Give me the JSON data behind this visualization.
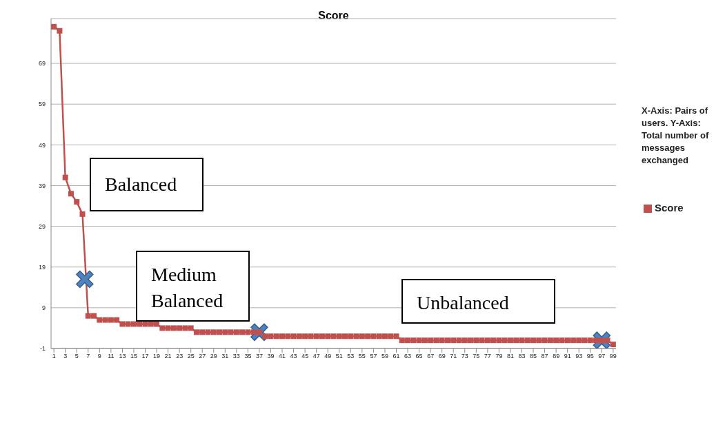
{
  "chart_data": {
    "type": "line",
    "title": "Score",
    "annotations": [
      "Balanced",
      "Medium\nBalanced",
      "Unbalanced",
      "X-Axis: Pairs of users. Y-Axis: Total number of messages exchanged"
    ],
    "series": [
      {
        "name": "Score",
        "color": "#c0504d",
        "marker": "square",
        "x": [
          1,
          2,
          3,
          4,
          5,
          6,
          7,
          8,
          9,
          10,
          11,
          12,
          13,
          14,
          15,
          16,
          17,
          18,
          19,
          20,
          21,
          22,
          23,
          24,
          25,
          26,
          27,
          28,
          29,
          30,
          31,
          32,
          33,
          34,
          35,
          36,
          37,
          38,
          39,
          40,
          41,
          42,
          43,
          44,
          45,
          46,
          47,
          48,
          49,
          50,
          51,
          52,
          53,
          54,
          55,
          56,
          57,
          58,
          59,
          60,
          61,
          62,
          63,
          64,
          65,
          66,
          67,
          68,
          69,
          70,
          71,
          72,
          73,
          74,
          75,
          76,
          77,
          78,
          79,
          80,
          81,
          82,
          83,
          84,
          85,
          86,
          87,
          88,
          89,
          90,
          91,
          92,
          93,
          94,
          95,
          96,
          97,
          98,
          99
        ],
        "values": [
          78,
          77,
          41,
          37,
          35,
          32,
          7,
          7,
          6,
          6,
          6,
          6,
          5,
          5,
          5,
          5,
          5,
          5,
          5,
          4,
          4,
          4,
          4,
          4,
          4,
          3,
          3,
          3,
          3,
          3,
          3,
          3,
          3,
          3,
          3,
          3,
          3,
          2,
          2,
          2,
          2,
          2,
          2,
          2,
          2,
          2,
          2,
          2,
          2,
          2,
          2,
          2,
          2,
          2,
          2,
          2,
          2,
          2,
          2,
          2,
          2,
          1,
          1,
          1,
          1,
          1,
          1,
          1,
          1,
          1,
          1,
          1,
          1,
          1,
          1,
          1,
          1,
          1,
          1,
          1,
          1,
          1,
          1,
          1,
          1,
          1,
          1,
          1,
          1,
          1,
          1,
          1,
          1,
          1,
          1,
          1,
          1,
          1,
          0
        ]
      },
      {
        "type": "scatter",
        "color": "#4f81bd",
        "marker": "cross",
        "x": [
          6.4,
          37,
          97
        ],
        "values": [
          16,
          3,
          1
        ]
      }
    ],
    "xlim": [
      0.5,
      99.5
    ],
    "xticks": [
      1,
      3,
      5,
      7,
      9,
      11,
      13,
      15,
      17,
      19,
      21,
      23,
      25,
      27,
      29,
      31,
      33,
      35,
      37,
      39,
      41,
      43,
      45,
      47,
      49,
      51,
      53,
      55,
      57,
      59,
      61,
      63,
      65,
      67,
      69,
      71,
      73,
      75,
      77,
      79,
      81,
      83,
      85,
      87,
      89,
      91,
      93,
      95,
      97,
      99
    ],
    "ylim": [
      -1,
      80
    ],
    "yticks": [
      -1,
      9,
      19,
      29,
      39,
      49,
      59,
      69
    ],
    "grid": "y",
    "legend": "right"
  }
}
